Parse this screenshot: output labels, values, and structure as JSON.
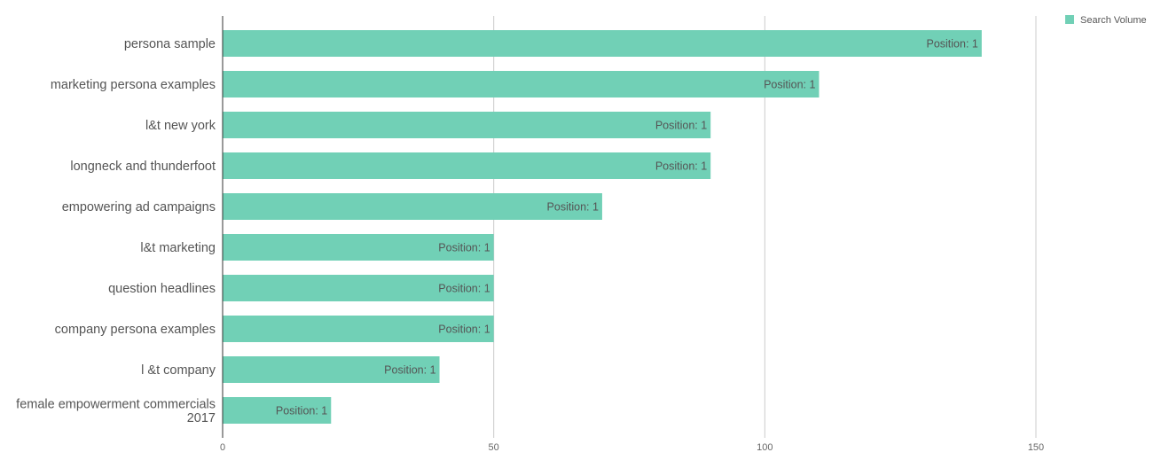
{
  "chart_data": {
    "type": "bar",
    "orientation": "horizontal",
    "categories": [
      "persona sample",
      "marketing persona examples",
      "l&t new york",
      "longneck and thunderfoot",
      "empowering ad campaigns",
      "l&t marketing",
      "question headlines",
      "company persona examples",
      "l &t company",
      "female empowerment commercials 2017"
    ],
    "category_lines": [
      [
        "persona sample"
      ],
      [
        "marketing persona examples"
      ],
      [
        "l&t new york"
      ],
      [
        "longneck and thunderfoot"
      ],
      [
        "empowering ad campaigns"
      ],
      [
        "l&t marketing"
      ],
      [
        "question headlines"
      ],
      [
        "company persona examples"
      ],
      [
        "l &t company"
      ],
      [
        "female empowerment commercials",
        "2017"
      ]
    ],
    "series": [
      {
        "name": "Search Volume",
        "color": "#71d0b6",
        "values": [
          140,
          110,
          90,
          90,
          70,
          50,
          50,
          50,
          40,
          20
        ],
        "data_labels": [
          "Position: 1",
          "Position: 1",
          "Position: 1",
          "Position: 1",
          "Position: 1",
          "Position: 1",
          "Position: 1",
          "Position: 1",
          "Position: 1",
          "Position: 1"
        ]
      }
    ],
    "xlim": [
      0,
      150
    ],
    "x_ticks": [
      0,
      50,
      100,
      150
    ],
    "x_tick_labels": [
      "0",
      "50",
      "100",
      "150"
    ],
    "grid": true,
    "legend_position": "top-right",
    "title": "",
    "xlabel": "",
    "ylabel": ""
  }
}
